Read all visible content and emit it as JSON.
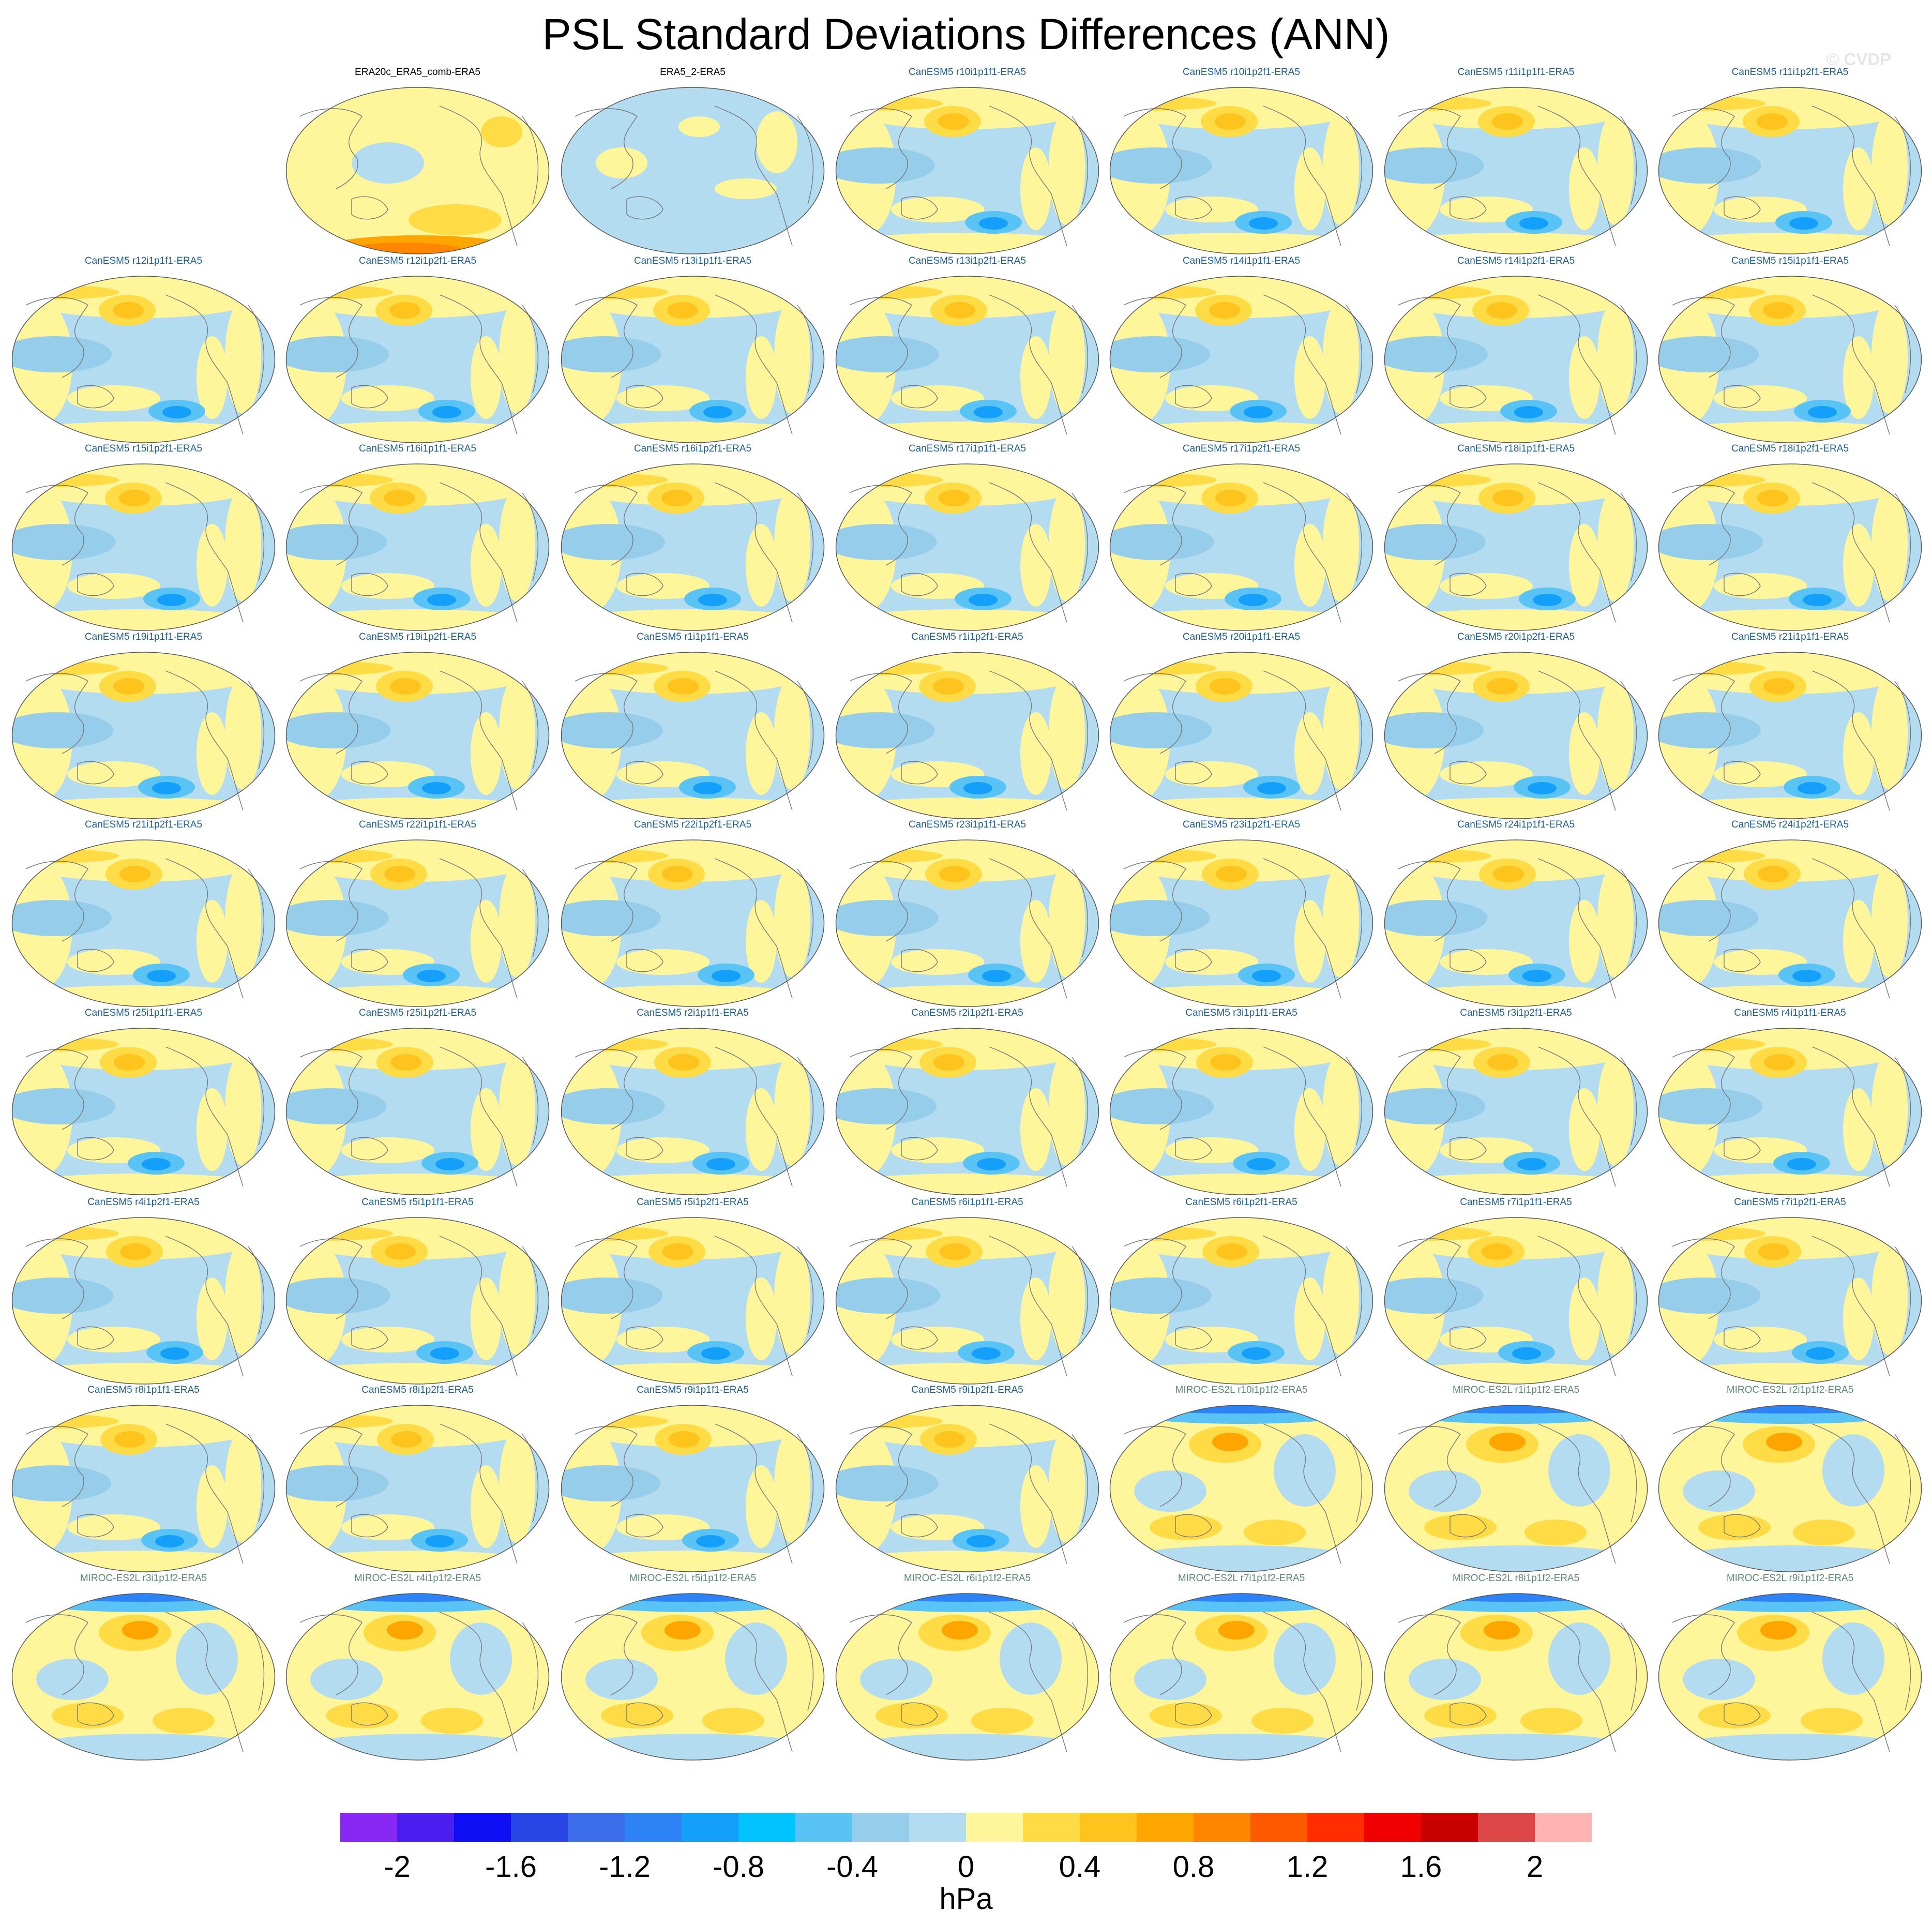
{
  "title": "PSL Standard Deviations Differences (ANN)",
  "watermark": "© CVDP",
  "colors": {
    "canesm_title": "#1f5f8b",
    "miroc_title": "#5c8a72",
    "obs_title": "#000000",
    "ocean_neg": "#b4dcf0",
    "land_pos": "#fff59b",
    "coast": "#777777"
  },
  "panels": [
    {
      "label": "ERA20c_ERA5_comb-ERA5",
      "group": "obs"
    },
    {
      "label": "ERA5_2-ERA5",
      "group": "obs"
    },
    {
      "label": "CanESM5 r10i1p1f1-ERA5",
      "group": "canesm"
    },
    {
      "label": "CanESM5 r10i1p2f1-ERA5",
      "group": "canesm"
    },
    {
      "label": "CanESM5 r11i1p1f1-ERA5",
      "group": "canesm"
    },
    {
      "label": "CanESM5 r11i1p2f1-ERA5",
      "group": "canesm"
    },
    {
      "label": "CanESM5 r12i1p1f1-ERA5",
      "group": "canesm"
    },
    {
      "label": "CanESM5 r12i1p2f1-ERA5",
      "group": "canesm"
    },
    {
      "label": "CanESM5 r13i1p1f1-ERA5",
      "group": "canesm"
    },
    {
      "label": "CanESM5 r13i1p2f1-ERA5",
      "group": "canesm"
    },
    {
      "label": "CanESM5 r14i1p1f1-ERA5",
      "group": "canesm"
    },
    {
      "label": "CanESM5 r14i1p2f1-ERA5",
      "group": "canesm"
    },
    {
      "label": "CanESM5 r15i1p1f1-ERA5",
      "group": "canesm"
    },
    {
      "label": "CanESM5 r15i1p2f1-ERA5",
      "group": "canesm"
    },
    {
      "label": "CanESM5 r16i1p1f1-ERA5",
      "group": "canesm"
    },
    {
      "label": "CanESM5 r16i1p2f1-ERA5",
      "group": "canesm"
    },
    {
      "label": "CanESM5 r17i1p1f1-ERA5",
      "group": "canesm"
    },
    {
      "label": "CanESM5 r17i1p2f1-ERA5",
      "group": "canesm"
    },
    {
      "label": "CanESM5 r18i1p1f1-ERA5",
      "group": "canesm"
    },
    {
      "label": "CanESM5 r18i1p2f1-ERA5",
      "group": "canesm"
    },
    {
      "label": "CanESM5 r19i1p1f1-ERA5",
      "group": "canesm"
    },
    {
      "label": "CanESM5 r19i1p2f1-ERA5",
      "group": "canesm"
    },
    {
      "label": "CanESM5 r1i1p1f1-ERA5",
      "group": "canesm"
    },
    {
      "label": "CanESM5 r1i1p2f1-ERA5",
      "group": "canesm"
    },
    {
      "label": "CanESM5 r20i1p1f1-ERA5",
      "group": "canesm"
    },
    {
      "label": "CanESM5 r20i1p2f1-ERA5",
      "group": "canesm"
    },
    {
      "label": "CanESM5 r21i1p1f1-ERA5",
      "group": "canesm"
    },
    {
      "label": "CanESM5 r21i1p2f1-ERA5",
      "group": "canesm"
    },
    {
      "label": "CanESM5 r22i1p1f1-ERA5",
      "group": "canesm"
    },
    {
      "label": "CanESM5 r22i1p2f1-ERA5",
      "group": "canesm"
    },
    {
      "label": "CanESM5 r23i1p1f1-ERA5",
      "group": "canesm"
    },
    {
      "label": "CanESM5 r23i1p2f1-ERA5",
      "group": "canesm"
    },
    {
      "label": "CanESM5 r24i1p1f1-ERA5",
      "group": "canesm"
    },
    {
      "label": "CanESM5 r24i1p2f1-ERA5",
      "group": "canesm"
    },
    {
      "label": "CanESM5 r25i1p1f1-ERA5",
      "group": "canesm"
    },
    {
      "label": "CanESM5 r25i1p2f1-ERA5",
      "group": "canesm"
    },
    {
      "label": "CanESM5 r2i1p1f1-ERA5",
      "group": "canesm"
    },
    {
      "label": "CanESM5 r2i1p2f1-ERA5",
      "group": "canesm"
    },
    {
      "label": "CanESM5 r3i1p1f1-ERA5",
      "group": "canesm"
    },
    {
      "label": "CanESM5 r3i1p2f1-ERA5",
      "group": "canesm"
    },
    {
      "label": "CanESM5 r4i1p1f1-ERA5",
      "group": "canesm"
    },
    {
      "label": "CanESM5 r4i1p2f1-ERA5",
      "group": "canesm"
    },
    {
      "label": "CanESM5 r5i1p1f1-ERA5",
      "group": "canesm"
    },
    {
      "label": "CanESM5 r5i1p2f1-ERA5",
      "group": "canesm"
    },
    {
      "label": "CanESM5 r6i1p1f1-ERA5",
      "group": "canesm"
    },
    {
      "label": "CanESM5 r6i1p2f1-ERA5",
      "group": "canesm"
    },
    {
      "label": "CanESM5 r7i1p1f1-ERA5",
      "group": "canesm"
    },
    {
      "label": "CanESM5 r7i1p2f1-ERA5",
      "group": "canesm"
    },
    {
      "label": "CanESM5 r8i1p1f1-ERA5",
      "group": "canesm"
    },
    {
      "label": "CanESM5 r8i1p2f1-ERA5",
      "group": "canesm"
    },
    {
      "label": "CanESM5 r9i1p1f1-ERA5",
      "group": "canesm"
    },
    {
      "label": "CanESM5 r9i1p2f1-ERA5",
      "group": "canesm"
    },
    {
      "label": "MIROC-ES2L r10i1p1f2-ERA5",
      "group": "miroc"
    },
    {
      "label": "MIROC-ES2L r1i1p1f2-ERA5",
      "group": "miroc"
    },
    {
      "label": "MIROC-ES2L r2i1p1f2-ERA5",
      "group": "miroc"
    },
    {
      "label": "MIROC-ES2L r3i1p1f2-ERA5",
      "group": "miroc"
    },
    {
      "label": "MIROC-ES2L r4i1p1f2-ERA5",
      "group": "miroc"
    },
    {
      "label": "MIROC-ES2L r5i1p1f2-ERA5",
      "group": "miroc"
    },
    {
      "label": "MIROC-ES2L r6i1p1f2-ERA5",
      "group": "miroc"
    },
    {
      "label": "MIROC-ES2L r7i1p1f2-ERA5",
      "group": "miroc"
    },
    {
      "label": "MIROC-ES2L r8i1p1f2-ERA5",
      "group": "miroc"
    },
    {
      "label": "MIROC-ES2L r9i1p1f2-ERA5",
      "group": "miroc"
    }
  ],
  "chart_data": {
    "type": "heatmap",
    "title": "PSL Standard Deviations Differences (ANN)",
    "units": "hPa",
    "colorbar": {
      "tick_labels": [
        "-2",
        "-1.6",
        "-1.2",
        "-0.8",
        "-0.4",
        "0",
        "0.4",
        "0.8",
        "1.2",
        "1.6",
        "2"
      ],
      "tick_values": [
        -2,
        -1.6,
        -1.2,
        -0.8,
        -0.4,
        0,
        0.4,
        0.8,
        1.2,
        1.6,
        2
      ],
      "levels": [
        -2.2,
        -2,
        -1.8,
        -1.6,
        -1.4,
        -1.2,
        -1,
        -0.8,
        -0.6,
        -0.4,
        -0.2,
        0,
        0.2,
        0.4,
        0.6,
        0.8,
        1,
        1.2,
        1.4,
        1.6,
        1.8,
        2,
        2.2
      ],
      "colors": [
        "#8728f5",
        "#4b1ef0",
        "#0f0ff5",
        "#2846e6",
        "#3c6eeb",
        "#2d82f5",
        "#14a0fa",
        "#00c3ff",
        "#5ac3f5",
        "#96cdeb",
        "#b4dcf0",
        "#fff59b",
        "#ffdc46",
        "#ffc31e",
        "#ffa500",
        "#ff8700",
        "#ff5a00",
        "#ff2d00",
        "#f00000",
        "#c80000",
        "#dc4646",
        "#ffb4b4"
      ]
    }
  }
}
